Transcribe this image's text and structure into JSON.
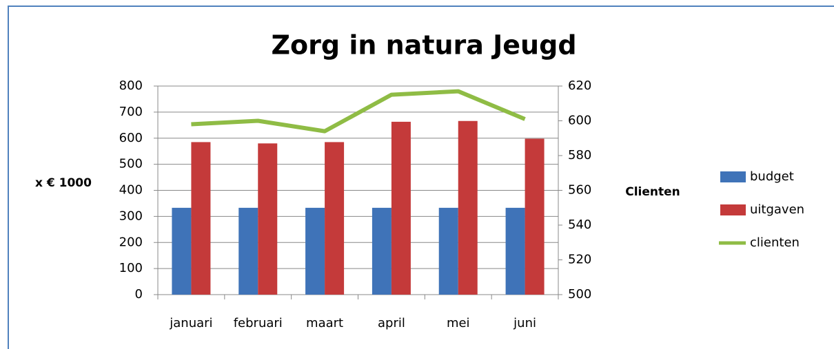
{
  "chart_data": {
    "type": "bar",
    "title": "Zorg in natura Jeugd",
    "y_label": "x € 1000",
    "y2_label": "Clienten",
    "categories": [
      "januari",
      "februari",
      "maart",
      "april",
      "mei",
      "juni"
    ],
    "series": [
      {
        "name": "budget",
        "color": "#3f73b8",
        "type": "bar",
        "values": [
          333,
          333,
          333,
          333,
          333,
          333
        ]
      },
      {
        "name": "uitgaven",
        "color": "#c43a3a",
        "type": "bar",
        "values": [
          585,
          580,
          585,
          663,
          666,
          598
        ]
      },
      {
        "name": "clienten",
        "color": "#8fbc45",
        "type": "line",
        "axis": "y2",
        "values": [
          598,
          600,
          594,
          615,
          617,
          601
        ]
      }
    ],
    "ylim": [
      0,
      800
    ],
    "yticks": [
      0,
      100,
      200,
      300,
      400,
      500,
      600,
      700,
      800
    ],
    "y2lim": [
      500,
      620
    ],
    "y2ticks": [
      500,
      520,
      540,
      560,
      580,
      600,
      620
    ],
    "grid": true,
    "legend": "right"
  }
}
